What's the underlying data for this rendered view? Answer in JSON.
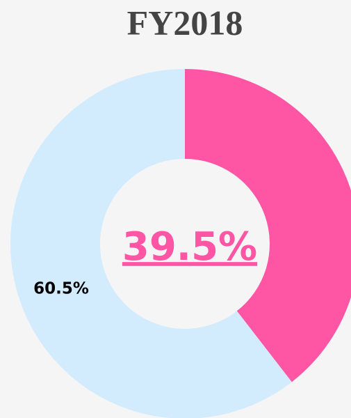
{
  "chart_data": {
    "type": "donut",
    "title": "FY2018",
    "values": [
      39.5,
      60.5
    ],
    "value_labels": [
      "39.5%",
      "60.5%"
    ],
    "colors": [
      "#ff55a5",
      "#d3ecfd"
    ]
  }
}
